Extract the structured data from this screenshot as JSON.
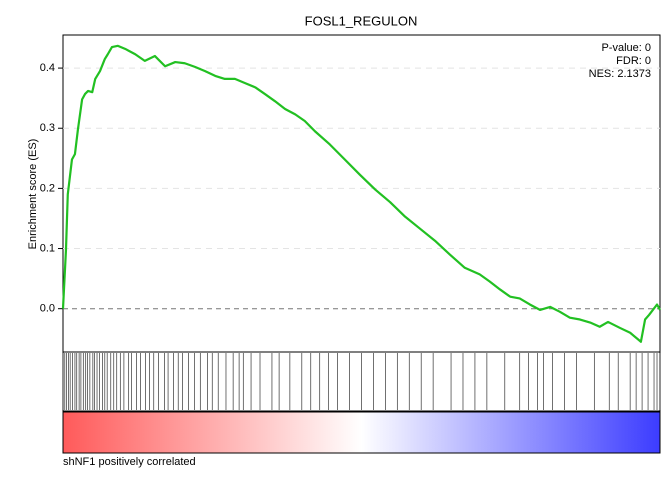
{
  "chart_data": {
    "type": "line",
    "title": "FOSL1_REGULON",
    "y_label": "Enrichment score (ES)",
    "stats": [
      "P-value: 0",
      "FDR: 0",
      "NES: 2.1373"
    ],
    "x_caption": "shNF1 positively correlated",
    "xlim": [
      0,
      100
    ],
    "ylim": [
      -0.072,
      0.455
    ],
    "yticks": [
      {
        "value": 0,
        "label": "0.0"
      },
      0.1,
      0.2,
      0.3,
      0.4
    ],
    "grid": true,
    "zero_line": true,
    "x": [
      0,
      0.5,
      0.8,
      1.5,
      2,
      2.5,
      3.2,
      3.7,
      4.2,
      4.9,
      5.4,
      6.2,
      7,
      7.5,
      8.2,
      9.2,
      10.4,
      12.1,
      13.7,
      15.4,
      17.1,
      18.8,
      20.4,
      22.1,
      23.8,
      25.5,
      27.1,
      28.8,
      30.5,
      32.2,
      33.8,
      35.5,
      37.2,
      38.9,
      40.5,
      42.2,
      44.7,
      47.2,
      49.7,
      52.3,
      54.8,
      57.3,
      59.8,
      62.3,
      64.8,
      67.3,
      69.8,
      71.5,
      73.2,
      74.9,
      76.5,
      78.2,
      79.9,
      81.6,
      83.2,
      84.9,
      86.6,
      88.3,
      89.9,
      91.3,
      93.3,
      95,
      96.8,
      97.5,
      98.2,
      99.5,
      100
    ],
    "series": [
      {
        "color": "#22c022",
        "values": [
          0,
          0.098,
          0.19,
          0.248,
          0.257,
          0.298,
          0.348,
          0.357,
          0.362,
          0.36,
          0.382,
          0.395,
          0.415,
          0.423,
          0.435,
          0.437,
          0.432,
          0.423,
          0.412,
          0.42,
          0.403,
          0.41,
          0.408,
          0.402,
          0.395,
          0.387,
          0.382,
          0.382,
          0.375,
          0.368,
          0.357,
          0.345,
          0.332,
          0.323,
          0.312,
          0.295,
          0.273,
          0.248,
          0.223,
          0.198,
          0.177,
          0.153,
          0.133,
          0.113,
          0.09,
          0.068,
          0.057,
          0.045,
          0.032,
          0.02,
          0.017,
          0.007,
          -0.002,
          0.003,
          -0.005,
          -0.015,
          -0.018,
          -0.023,
          -0.03,
          -0.022,
          -0.032,
          -0.04,
          -0.055,
          -0.018,
          -0.01,
          0.007,
          -0.002
        ]
      }
    ],
    "hits": [
      0,
      0.3,
      0.6,
      0.9,
      1.2,
      1.6,
      2,
      2.3,
      2.7,
      3,
      3.4,
      3.8,
      4.1,
      4.5,
      5,
      5.3,
      5.7,
      6.1,
      6.6,
      7,
      7.4,
      8,
      8.5,
      9,
      9.6,
      10.2,
      11,
      11.5,
      12.3,
      13,
      13.8,
      14.5,
      15.2,
      16,
      17,
      17.6,
      18.5,
      19.3,
      20,
      21,
      22,
      23,
      24.2,
      25,
      26,
      27.3,
      28.5,
      29.5,
      30.2,
      31.5,
      33,
      35,
      36.2,
      38,
      40,
      41.5,
      43,
      44.5,
      46,
      48,
      50,
      52,
      54,
      56,
      58,
      60,
      62,
      65,
      67,
      69,
      71,
      74,
      76.5,
      78,
      79.5,
      80.5,
      82,
      84,
      86,
      89,
      91.5,
      93,
      95,
      96,
      97,
      98,
      99,
      99.5,
      100
    ],
    "gradient": [
      "#ff5a5a",
      "#ffffff",
      "#3c3cff"
    ]
  }
}
